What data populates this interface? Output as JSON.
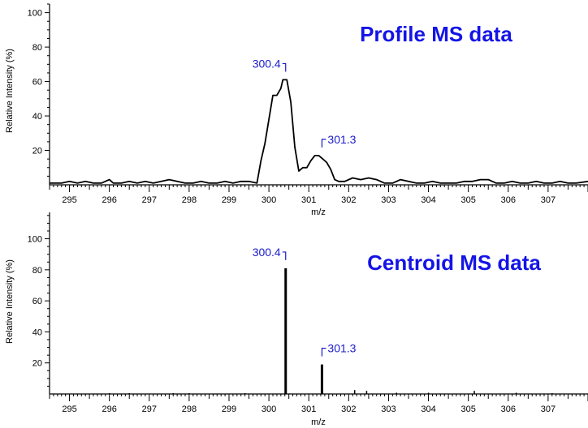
{
  "colors": {
    "trace": "#000000",
    "title": "#1414e6",
    "peak_label": "#1a1acc"
  },
  "chart_data": [
    {
      "type": "line",
      "title": "Profile MS data",
      "xlabel": "m/z",
      "ylabel": "Relative Intensity (%)",
      "xlim": [
        294.5,
        308.0
      ],
      "ylim": [
        0,
        105
      ],
      "x_ticks": [
        "295",
        "296",
        "297",
        "298",
        "299",
        "300",
        "301",
        "302",
        "303",
        "304",
        "305",
        "306",
        "307"
      ],
      "y_ticks": [
        "20",
        "40",
        "60",
        "80",
        "100"
      ],
      "annotations": [
        {
          "text": "300.4",
          "x": 300.42,
          "y": 61
        },
        {
          "text": "301.3",
          "x": 301.33,
          "y": 17
        }
      ],
      "x": [
        294.5,
        294.8,
        295.0,
        295.2,
        295.4,
        295.6,
        295.8,
        296.0,
        296.1,
        296.3,
        296.5,
        296.7,
        296.9,
        297.1,
        297.3,
        297.5,
        297.7,
        297.9,
        298.1,
        298.3,
        298.5,
        298.7,
        298.9,
        299.1,
        299.3,
        299.5,
        299.7,
        299.8,
        299.9,
        300.0,
        300.1,
        300.2,
        300.3,
        300.35,
        300.45,
        300.55,
        300.65,
        300.75,
        300.85,
        300.95,
        301.05,
        301.15,
        301.25,
        301.35,
        301.45,
        301.55,
        301.65,
        301.75,
        301.9,
        302.1,
        302.3,
        302.5,
        302.7,
        302.9,
        303.1,
        303.3,
        303.5,
        303.7,
        303.9,
        304.1,
        304.3,
        304.5,
        304.7,
        304.9,
        305.1,
        305.3,
        305.5,
        305.7,
        305.9,
        306.1,
        306.3,
        306.5,
        306.7,
        306.9,
        307.1,
        307.3,
        307.5,
        307.7,
        308.0
      ],
      "values": [
        1,
        1,
        2,
        1,
        2,
        1,
        1,
        3,
        1,
        1,
        2,
        1,
        2,
        1,
        2,
        3,
        2,
        1,
        1,
        2,
        1,
        1,
        2,
        1,
        2,
        2,
        1,
        14,
        24,
        38,
        52,
        52,
        56,
        61,
        61,
        48,
        22,
        8,
        10,
        10,
        14,
        17,
        17,
        15,
        13,
        9,
        3,
        2,
        2,
        4,
        3,
        4,
        3,
        1,
        1,
        3,
        2,
        1,
        1,
        2,
        1,
        1,
        1,
        2,
        2,
        3,
        3,
        1,
        1,
        2,
        1,
        1,
        2,
        1,
        1,
        2,
        1,
        1,
        2
      ]
    },
    {
      "type": "bar",
      "title": "Centroid MS data",
      "xlabel": "m/z",
      "ylabel": "Relative Intensity (%)",
      "xlim": [
        294.5,
        308.0
      ],
      "ylim": [
        0,
        117
      ],
      "x_ticks": [
        "295",
        "296",
        "297",
        "298",
        "299",
        "300",
        "301",
        "302",
        "303",
        "304",
        "305",
        "306",
        "307"
      ],
      "y_ticks": [
        "20",
        "40",
        "60",
        "80",
        "100"
      ],
      "annotations": [
        {
          "text": "300.4",
          "x": 300.42,
          "y": 81
        },
        {
          "text": "301.3",
          "x": 301.33,
          "y": 19
        }
      ],
      "x": [
        296.0,
        296.5,
        297.6,
        298.0,
        299.4,
        300.42,
        301.33,
        302.15,
        302.45,
        303.2,
        304.0,
        305.15,
        306.2,
        307.1
      ],
      "values": [
        0.5,
        0.5,
        0.5,
        0.5,
        0.5,
        81,
        19,
        2.5,
        2,
        0.8,
        0.8,
        2,
        0.8,
        0.5
      ]
    }
  ]
}
